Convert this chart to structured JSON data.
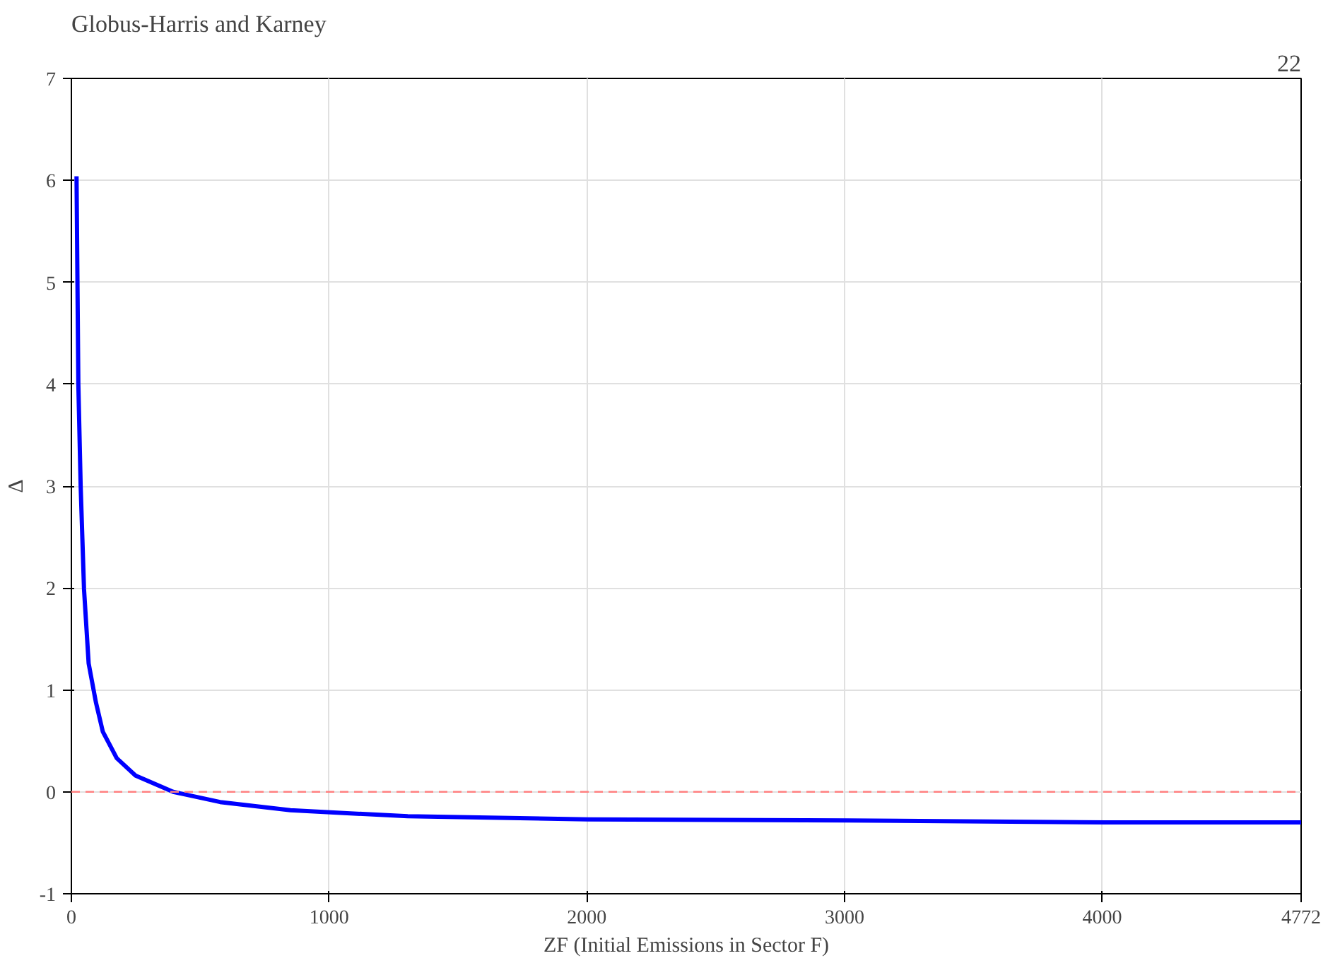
{
  "chart_data": {
    "type": "line",
    "title": "Globus-Harris and Karney",
    "annotations": [
      "22"
    ],
    "xlabel": "ZF (Initial Emissions in Sector F)",
    "ylabel": "Δ",
    "x": [
      20,
      27,
      36,
      49,
      67,
      95,
      122,
      176,
      249,
      395,
      577,
      850,
      1305,
      2004,
      3008,
      4013,
      4772
    ],
    "series": [
      {
        "color": "#0000ff",
        "values": [
          6.04,
          4.0,
          3.0,
          1.99,
          1.26,
          0.88,
          0.59,
          0.33,
          0.16,
          0.0,
          -0.1,
          -0.18,
          -0.24,
          -0.27,
          -0.28,
          -0.3,
          -0.3
        ]
      }
    ],
    "xlim": [
      0,
      4772
    ],
    "xticks": [
      0,
      1000,
      2000,
      3000,
      4000,
      4772
    ],
    "ylim": [
      -1,
      7
    ],
    "yticks": [
      -1,
      0,
      1,
      2,
      3,
      4,
      5,
      6,
      7
    ],
    "grid": true,
    "line_style": "solid",
    "marker": "none",
    "ref_lines": [
      {
        "axis": "y",
        "value": 0,
        "color": "#ff8080",
        "line_style": "dashed"
      }
    ]
  }
}
